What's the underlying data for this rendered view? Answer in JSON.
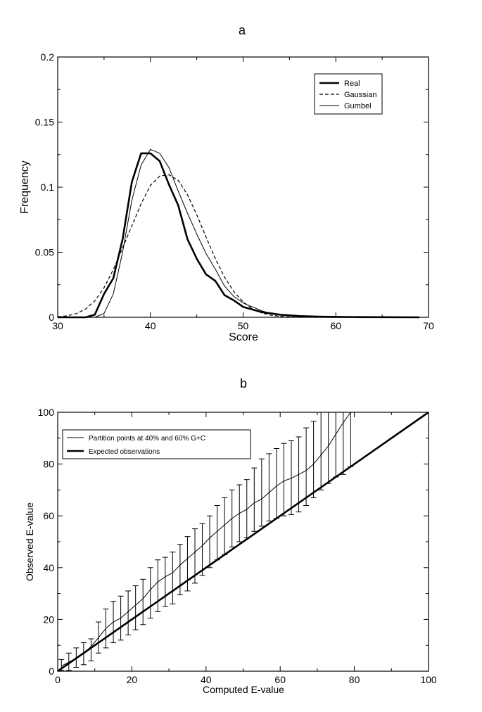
{
  "chart_data": [
    {
      "panel_label": "a",
      "type": "line",
      "xlabel": "Score",
      "ylabel": "Frequency",
      "xlim": [
        30,
        70
      ],
      "ylim": [
        0,
        0.2
      ],
      "xticks": [
        "30",
        "40",
        "50",
        "60",
        "70"
      ],
      "yticks": [
        "0",
        "0.05",
        "0.1",
        "0.15",
        "0.2"
      ],
      "legend_position": "top-right",
      "grid": false,
      "series": [
        {
          "name": "Real",
          "style": "thick",
          "x": [
            30,
            33,
            34,
            35,
            36,
            37,
            38,
            39,
            40,
            41,
            42,
            43,
            44,
            45,
            46,
            47,
            48,
            49,
            50,
            51,
            52,
            53,
            54,
            55,
            56,
            58,
            60,
            62,
            65,
            69
          ],
          "y": [
            0,
            0,
            0.002,
            0.018,
            0.03,
            0.06,
            0.104,
            0.126,
            0.126,
            0.12,
            0.102,
            0.086,
            0.06,
            0.045,
            0.033,
            0.028,
            0.017,
            0.013,
            0.008,
            0.006,
            0.004,
            0.003,
            0.002,
            0.0015,
            0.001,
            0.0005,
            0.0003,
            0.0002,
            0.0001,
            0
          ]
        },
        {
          "name": "Gaussian",
          "style": "dashed",
          "x": [
            30,
            31,
            32,
            33,
            34,
            35,
            36,
            37,
            38,
            39,
            40,
            41,
            42,
            43,
            44,
            45,
            46,
            47,
            48,
            49,
            50,
            51,
            52,
            53,
            54,
            55,
            56,
            58,
            60,
            69
          ],
          "y": [
            0.0004,
            0.0011,
            0.0028,
            0.0063,
            0.0126,
            0.0228,
            0.0367,
            0.0533,
            0.0703,
            0.0872,
            0.1013,
            0.1085,
            0.1095,
            0.1052,
            0.0942,
            0.0788,
            0.0617,
            0.0451,
            0.0309,
            0.0198,
            0.0118,
            0.0065,
            0.0034,
            0.0016,
            0.0007,
            0.0003,
            0.0001,
            0,
            0,
            0
          ]
        },
        {
          "name": "Gumbel",
          "style": "thin",
          "x": [
            30,
            34,
            35,
            36,
            37,
            38,
            39,
            40,
            41,
            42,
            43,
            44,
            45,
            46,
            47,
            48,
            49,
            50,
            51,
            52,
            53,
            54,
            55,
            56,
            58,
            60,
            62,
            65,
            69
          ],
          "y": [
            0,
            0,
            0.003,
            0.018,
            0.05,
            0.09,
            0.117,
            0.129,
            0.126,
            0.115,
            0.097,
            0.08,
            0.064,
            0.049,
            0.037,
            0.024,
            0.016,
            0.011,
            0.008,
            0.005,
            0.003,
            0.002,
            0.0015,
            0.001,
            0.0005,
            0.0003,
            0.0002,
            0.0001,
            0
          ]
        }
      ]
    },
    {
      "panel_label": "b",
      "type": "line",
      "xlabel": "Computed E-value",
      "ylabel": "Observed E-value",
      "xlim": [
        0,
        100
      ],
      "ylim": [
        0,
        100
      ],
      "xticks": [
        "0",
        "20",
        "40",
        "60",
        "80",
        "100"
      ],
      "yticks": [
        "0",
        "20",
        "40",
        "60",
        "80",
        "100"
      ],
      "legend_position": "top-left",
      "grid": false,
      "series": [
        {
          "name": "Partition points at 40% and 60% G+C",
          "style": "thin",
          "error_bars": true,
          "x": [
            1,
            3,
            5,
            7,
            9,
            11,
            13,
            15,
            17,
            19,
            21,
            23,
            25,
            27,
            29,
            31,
            33,
            35,
            37,
            39,
            41,
            43,
            45,
            47,
            49,
            51,
            53,
            55,
            57,
            59,
            61,
            63,
            65,
            67,
            69,
            71,
            73,
            75,
            77,
            79
          ],
          "y": [
            2,
            3.5,
            5,
            7,
            9.5,
            13,
            16.5,
            19,
            20.5,
            23,
            25.5,
            28,
            31.5,
            34.5,
            36.5,
            38,
            41,
            43.5,
            46,
            48.5,
            51.5,
            54,
            56.5,
            59,
            61,
            62.5,
            65,
            66.5,
            69,
            71.5,
            73.5,
            74.5,
            76,
            77.5,
            80,
            83.5,
            87,
            91.5,
            96,
            101
          ],
          "err_low": [
            0.3,
            0.3,
            1.5,
            2.5,
            4,
            7,
            9,
            11,
            12,
            14,
            16,
            18,
            20.5,
            23,
            25,
            26,
            29.5,
            31,
            34,
            37,
            40,
            43,
            45,
            48,
            50,
            51.5,
            54,
            56,
            58,
            59,
            60,
            60.5,
            61.5,
            64,
            67,
            70,
            72.5,
            75,
            76,
            79
          ],
          "err_high": [
            4.5,
            7,
            9,
            11,
            12.5,
            19,
            24,
            27,
            29,
            31,
            33,
            35.5,
            40,
            43,
            44,
            46,
            49,
            52,
            55,
            57,
            60,
            64,
            67,
            70,
            72,
            74,
            78.5,
            82,
            84,
            86,
            88,
            89,
            90.5,
            94,
            96.5,
            100,
            100,
            100,
            100,
            100
          ]
        },
        {
          "name": "Expected observations",
          "style": "thick",
          "x": [
            0,
            100
          ],
          "y": [
            0,
            100
          ]
        }
      ]
    }
  ]
}
